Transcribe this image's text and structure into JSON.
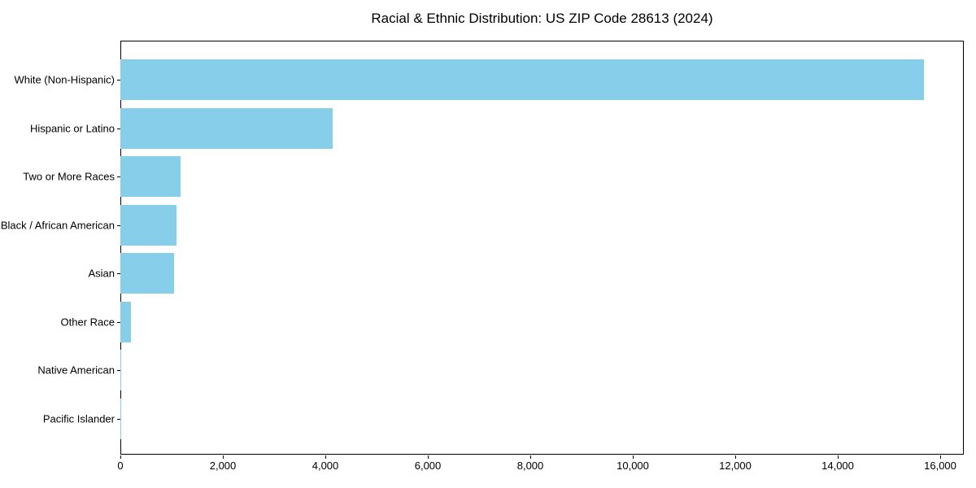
{
  "figure": {
    "background_color": "#FFFFFF",
    "title": "Racial & Ethnic Distribution: US ZIP Code 28613 (2024)"
  },
  "chart_data": {
    "type": "bar",
    "orientation": "horizontal",
    "title": "Racial & Ethnic Distribution: US ZIP Code 28613 (2024)",
    "xlabel": "",
    "ylabel": "",
    "categories": [
      "White (Non-Hispanic)",
      "Hispanic or Latino",
      "Two or More Races",
      "Black / African American",
      "Asian",
      "Other Race",
      "Native American",
      "Pacific Islander"
    ],
    "values": [
      15680,
      4150,
      1180,
      1090,
      1055,
      210,
      15,
      5
    ],
    "xlim": [
      0,
      16460
    ],
    "x_ticks": [
      0,
      2000,
      4000,
      6000,
      8000,
      10000,
      12000,
      14000,
      16000
    ],
    "x_tick_labels": [
      "0",
      "2,000",
      "4,000",
      "6,000",
      "8,000",
      "10,000",
      "12,000",
      "14,000",
      "16,000"
    ],
    "grid": false,
    "legend": "none",
    "bar_color": "#87CEEB",
    "axis_color": "#000000",
    "text_color": "#000000"
  }
}
